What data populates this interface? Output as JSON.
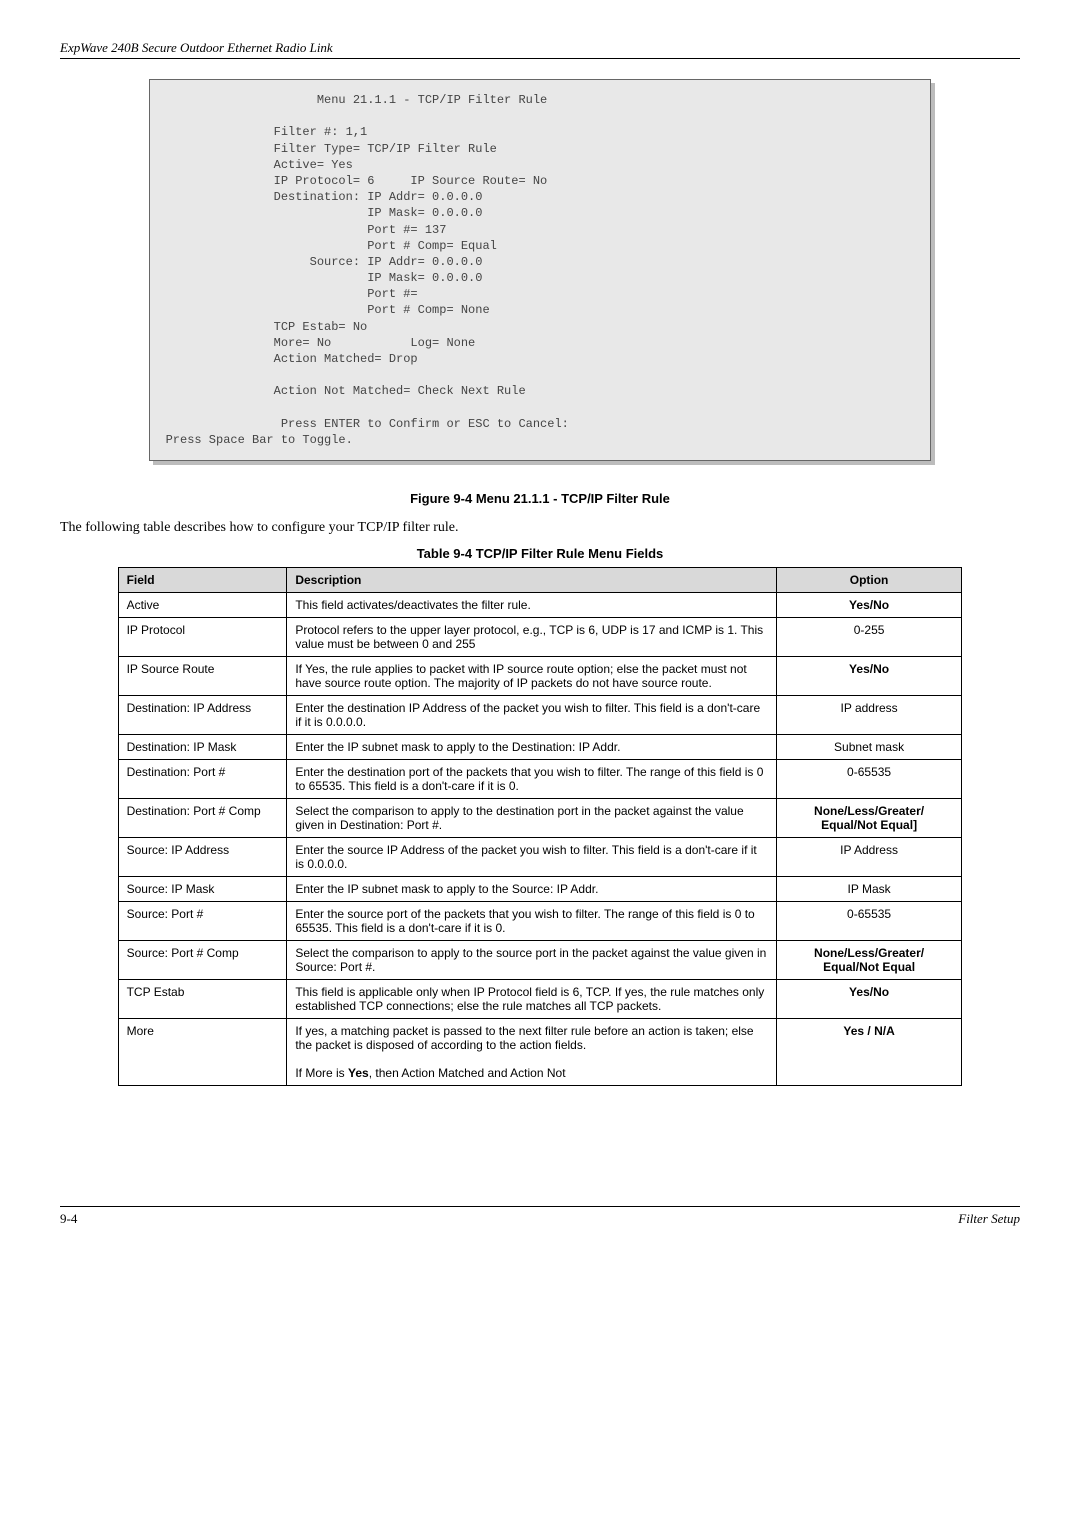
{
  "header": "ExpWave 240B Secure Outdoor Ethernet Radio Link",
  "terminal": "                     Menu 21.1.1 - TCP/IP Filter Rule\n\n               Filter #: 1,1\n               Filter Type= TCP/IP Filter Rule\n               Active= Yes\n               IP Protocol= 6     IP Source Route= No\n               Destination: IP Addr= 0.0.0.0\n                            IP Mask= 0.0.0.0\n                            Port #= 137\n                            Port # Comp= Equal\n                    Source: IP Addr= 0.0.0.0\n                            IP Mask= 0.0.0.0\n                            Port #=\n                            Port # Comp= None\n               TCP Estab= No\n               More= No           Log= None\n               Action Matched= Drop\n\n               Action Not Matched= Check Next Rule\n\n                Press ENTER to Confirm or ESC to Cancel:\nPress Space Bar to Toggle.",
  "figure_caption": "Figure 9-4 Menu 21.1.1 - TCP/IP Filter Rule",
  "intro_text": "The following table describes how to configure your TCP/IP filter rule.",
  "table_caption": "Table 9-4 TCP/IP Filter Rule Menu Fields",
  "table_headers": {
    "field": "Field",
    "description": "Description",
    "option": "Option"
  },
  "rows": [
    {
      "field": "Active",
      "desc": "This field activates/deactivates the filter rule.",
      "option": "Yes/No"
    },
    {
      "field": "IP Protocol",
      "desc": "Protocol refers to the upper layer protocol, e.g., TCP is 6, UDP is 17 and ICMP is 1.   This value must be between 0 and 255",
      "option": "0-255"
    },
    {
      "field": "IP Source Route",
      "desc": "If Yes, the rule applies to packet with IP source route option; else the packet must not have source route option. The majority of IP packets do not have source route.",
      "option": "Yes/No"
    },
    {
      "field": "Destination: IP Address",
      "desc": "Enter the destination IP Address of the packet you wish to filter.   This field is a don't-care if it is 0.0.0.0.",
      "option": "IP address"
    },
    {
      "field": "Destination: IP Mask",
      "desc": "Enter the IP subnet mask to apply to the Destination: IP Addr.",
      "option": "Subnet mask"
    },
    {
      "field": "Destination: Port #",
      "desc": "Enter the destination port of the packets that you wish to filter. The range of this field is 0 to 65535.   This field is a don't-care if it is 0.",
      "option": "0-65535"
    },
    {
      "field": "Destination: Port # Comp",
      "desc": "Select the comparison to apply to the destination port in the packet against the value given in Destination: Port #.",
      "option": "None/Less/Greater/Equal/Not Equal]"
    },
    {
      "field": "Source: IP Address",
      "desc": "Enter the source IP Address of the packet you wish to filter. This field is a don't-care if it is 0.0.0.0.",
      "option": "IP Address"
    },
    {
      "field": "Source: IP Mask",
      "desc": "Enter the IP subnet mask to apply to the Source: IP Addr.",
      "option": "IP Mask"
    },
    {
      "field": "Source: Port #",
      "desc": "Enter the source port of the packets that you wish to filter. The range of this field is 0 to 65535.   This field is a don't-care if it is 0.",
      "option": "0-65535"
    },
    {
      "field": "Source: Port # Comp",
      "desc": "Select the comparison to apply to the source port in the packet against the value given in Source: Port #.",
      "option": "None/Less/Greater/Equal/Not Equal"
    },
    {
      "field": "TCP Estab",
      "desc": "This field is applicable only when IP Protocol field is 6, TCP.   If yes, the rule matches only established TCP connections; else the rule matches all TCP packets.",
      "option": "Yes/No"
    },
    {
      "field": "More",
      "desc": "If yes, a matching packet is passed to the next filter rule before an action is taken; else the packet is disposed of according to the action fields.\n\nIf More is Yes, then Action Matched and Action Not",
      "option": "Yes / N/A"
    }
  ],
  "footer": {
    "left": "9-4",
    "right": "Filter Setup"
  }
}
